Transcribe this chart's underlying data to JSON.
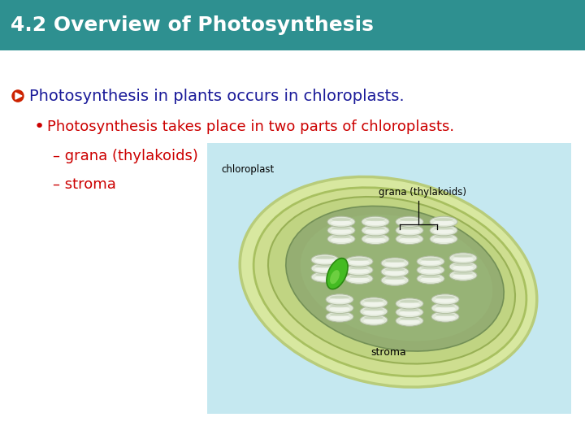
{
  "title": "4.2 Overview of Photosynthesis",
  "title_bg_color": "#2E9090",
  "title_text_color": "#FFFFFF",
  "title_fontsize": 18,
  "slide_bg_color": "#FFFFFF",
  "bullet1_text": "Photosynthesis in plants occurs in chloroplasts.",
  "bullet1_color": "#1A1A99",
  "bullet1_fontsize": 14,
  "bullet2_text": "Photosynthesis takes place in two parts of chloroplasts.",
  "bullet2_color": "#CC0000",
  "bullet2_fontsize": 13,
  "dash1_text": "grana (thylakoids)",
  "dash2_text": "stroma",
  "dash_color": "#CC0000",
  "dash_fontsize": 13,
  "bullet_icon_color": "#CC2200",
  "image_bg_color": "#C5E8F0",
  "image_label1": "grana (thylakoids)",
  "image_label2": "chloroplast",
  "image_label3": "stroma",
  "label_fontsize": 8.5
}
